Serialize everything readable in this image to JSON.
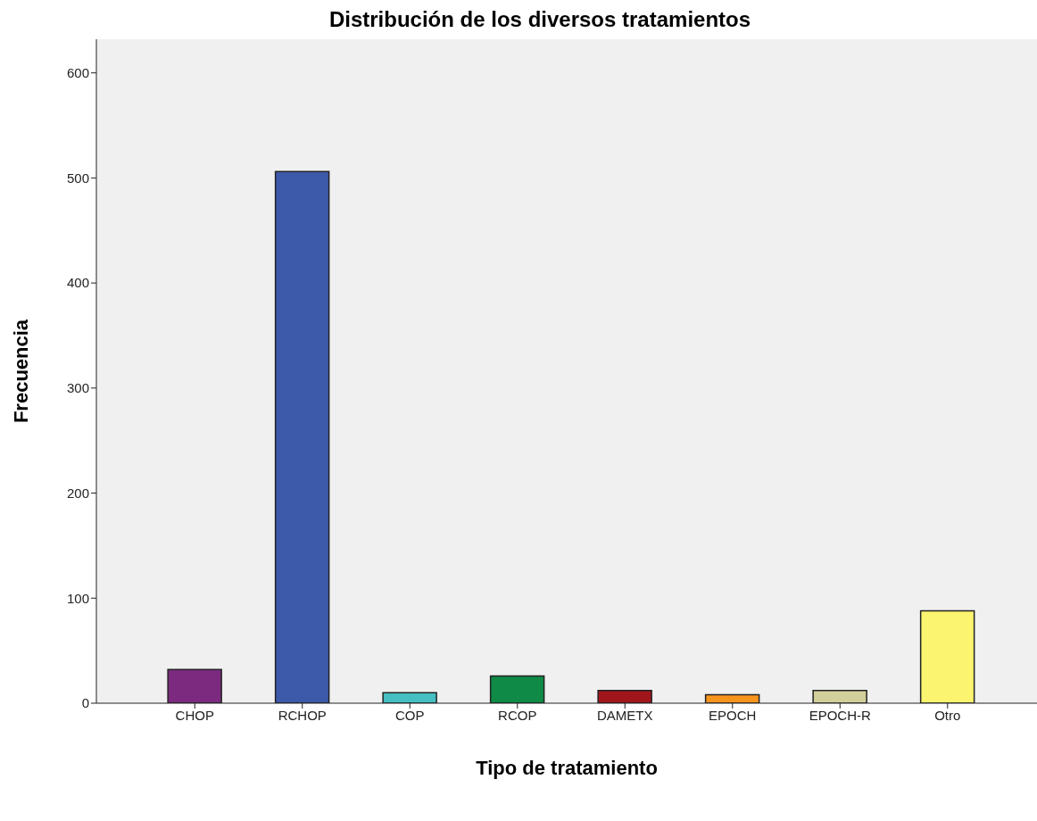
{
  "chart_data": {
    "type": "bar",
    "title": "Distribución de los diversos tratamientos",
    "xlabel": "Tipo de tratamiento",
    "ylabel": "Frecuencia",
    "categories": [
      "CHOP",
      "RCHOP",
      "COP",
      "RCOP",
      "DAMETX",
      "EPOCH",
      "EPOCH-R",
      "Otro"
    ],
    "values": [
      32,
      506,
      10,
      26,
      12,
      8,
      12,
      88
    ],
    "colors": [
      "#7b2a7f",
      "#3d59aa",
      "#46bfc3",
      "#108a47",
      "#a0161b",
      "#f7941d",
      "#d2cf9a",
      "#fbf46f"
    ],
    "ylim": [
      0,
      632
    ],
    "yticks": [
      0,
      100,
      200,
      300,
      400,
      500,
      600
    ],
    "grid": false,
    "legend": false
  }
}
